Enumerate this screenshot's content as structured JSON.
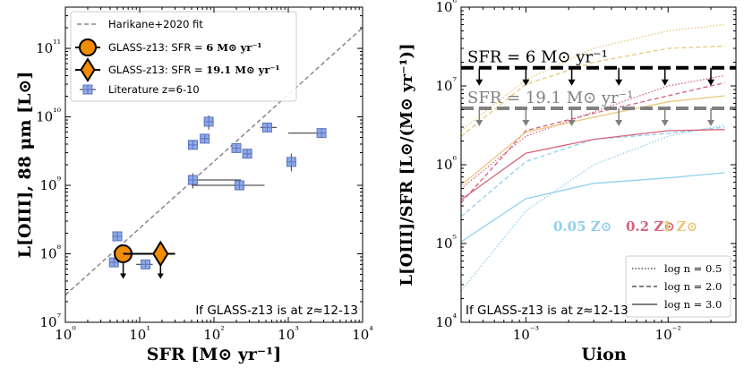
{
  "chart_data": [
    {
      "type": "scatter",
      "panel": "left",
      "xlabel": "SFR [M⊙ yr⁻¹]",
      "ylabel": "L[OIII], 88 μm [L⊙]",
      "xscale": "log",
      "yscale": "log",
      "xlim": [
        1,
        10000
      ],
      "ylim": [
        10000000,
        400000000000
      ],
      "xticks": [
        {
          "v": 1,
          "label": "10⁰"
        },
        {
          "v": 10,
          "label": "10¹"
        },
        {
          "v": 100,
          "label": "10²"
        },
        {
          "v": 1000,
          "label": "10³"
        },
        {
          "v": 10000,
          "label": "10⁴"
        }
      ],
      "yticks": [
        {
          "v": 10000000,
          "label": "10⁷"
        },
        {
          "v": 100000000,
          "label": "10⁸"
        },
        {
          "v": 1000000000,
          "label": "10⁹"
        },
        {
          "v": 10000000000,
          "label": "10¹⁰"
        },
        {
          "v": 100000000000,
          "label": "10¹¹"
        }
      ],
      "annotation": "If GLASS-z13 is at z≈12-13",
      "legend_position": "top-left",
      "legend": [
        {
          "label": "Harikane+2020 fit",
          "marker": "dashed-line",
          "color": "#888888"
        },
        {
          "label_plain": "GLASS-z13: SFR = ",
          "label_bold": "6 M⊙ yr⁻¹",
          "marker": "circle",
          "color": "#f28c00"
        },
        {
          "label_plain": "GLASS-z13: SFR = ",
          "label_bold": "19.1 M⊙ yr⁻¹",
          "marker": "diamond",
          "color": "#f28c00"
        },
        {
          "label": "Literature z=6-10",
          "marker": "square",
          "color": "#8fa9e6"
        }
      ],
      "fit_line": {
        "name": "Harikane+2020 fit",
        "x": [
          1,
          10000
        ],
        "y": [
          25000000,
          200000000000
        ],
        "color": "#888888"
      },
      "glass": [
        {
          "name": "GLASS-z13: SFR = 6 M⊙ yr⁻¹",
          "marker": "circle",
          "x": 6,
          "y": 100000000,
          "upper_limit": true,
          "xerr": [
            4.7,
            19.1
          ],
          "color": "#f28c00"
        },
        {
          "name": "GLASS-z13: SFR = 19.1 M⊙ yr⁻¹",
          "marker": "diamond",
          "x": 19.1,
          "y": 100000000,
          "upper_limit": true,
          "xerr": [
            6,
            30
          ],
          "color": "#f28c00"
        }
      ],
      "literature": {
        "name": "Literature z=6-10",
        "color": "#8fa9e6",
        "points": [
          {
            "x": 4.5,
            "y": 75000000,
            "xerr": [
              3.9,
              5.3
            ]
          },
          {
            "x": 5,
            "y": 180000000
          },
          {
            "x": 12,
            "y": 70000000,
            "xerr": [
              9,
              15
            ]
          },
          {
            "x": 52,
            "y": 1200000000,
            "xerr": [
              50,
              230
            ],
            "yerr": [
              900000000,
              1500000000
            ]
          },
          {
            "x": 52,
            "y": 3900000000
          },
          {
            "x": 75,
            "y": 4800000000
          },
          {
            "x": 85,
            "y": 8500000000,
            "yerr": [
              6500000000,
              10500000000
            ]
          },
          {
            "x": 220,
            "y": 1000000000,
            "xerr": [
              50,
              480
            ]
          },
          {
            "x": 200,
            "y": 3500000000
          },
          {
            "x": 280,
            "y": 2900000000
          },
          {
            "x": 520,
            "y": 7000000000,
            "xerr": [
              420,
              700
            ]
          },
          {
            "x": 1100,
            "y": 2200000000,
            "yerr": [
              1600000000,
              2900000000
            ]
          },
          {
            "x": 2800,
            "y": 5800000000,
            "xerr": [
              1000,
              3100
            ]
          }
        ]
      }
    },
    {
      "type": "line",
      "panel": "right",
      "xlabel": "Uion",
      "ylabel": "L[OIII]/SFR [L⊙/(M⊙ yr⁻¹)]",
      "xscale": "log",
      "yscale": "log",
      "xlim": [
        0.00035,
        0.03
      ],
      "ylim": [
        10000,
        100000000
      ],
      "xticks": [
        {
          "v": 0.001,
          "label": "10⁻³"
        },
        {
          "v": 0.01,
          "label": "10⁻²"
        }
      ],
      "yticks": [
        {
          "v": 10000,
          "label": "10⁴"
        },
        {
          "v": 100000,
          "label": "10⁵"
        },
        {
          "v": 1000000,
          "label": "10⁶"
        },
        {
          "v": 10000000,
          "label": "10⁷"
        },
        {
          "v": 100000000,
          "label": "10⁸"
        }
      ],
      "annotation": "If GLASS-z13 is at z≈12-13",
      "metallicity_labels": [
        {
          "text": "0.05 Z⊙",
          "color": "#8fd0f0"
        },
        {
          "text": "0.2 Z⊙",
          "color": "#d6627a"
        },
        {
          "text": "1 Z⊙",
          "color": "#e8c87a"
        }
      ],
      "legend_position": "bottom-right",
      "legend": [
        {
          "label": "log n = 0.5",
          "dash": "dotted"
        },
        {
          "label": "log n = 2.0",
          "dash": "dashed"
        },
        {
          "label": "log n = 3.0",
          "dash": "solid"
        }
      ],
      "limits": [
        {
          "label": "SFR = 6 M⊙ yr⁻¹",
          "y": 17000000,
          "color": "#000000",
          "arrow_x": [
            0.00047,
            0.001,
            0.0021,
            0.0045,
            0.0095,
            0.02
          ]
        },
        {
          "label": "SFR = 19.1 M⊙ yr⁻¹",
          "y": 5200000,
          "color": "#808080",
          "arrow_x": [
            0.00047,
            0.001,
            0.0021,
            0.0045,
            0.0095,
            0.02
          ]
        }
      ],
      "x": [
        0.00035,
        0.001,
        0.003,
        0.01,
        0.025
      ],
      "series": [
        {
          "name": "0.05 Z⊙, log n = 0.5",
          "metallicity": "0.05",
          "dash": "dotted",
          "color": "#8fd0f0",
          "values": [
            25000,
            260000,
            1000000,
            2300000,
            3200000
          ]
        },
        {
          "name": "0.05 Z⊙, log n = 2.0",
          "metallicity": "0.05",
          "dash": "dashed",
          "color": "#8fd0f0",
          "values": [
            220000,
            1100000,
            2100000,
            2500000,
            3000000
          ]
        },
        {
          "name": "0.05 Z⊙, log n = 3.0",
          "metallicity": "0.05",
          "dash": "solid",
          "color": "#8fd0f0",
          "values": [
            105000,
            370000,
            580000,
            680000,
            790000
          ]
        },
        {
          "name": "0.2 Z⊙, log n = 0.5",
          "metallicity": "0.2",
          "dash": "dotted",
          "color": "#d6627a",
          "values": [
            500000,
            2300000,
            4700000,
            10000000,
            13500000
          ]
        },
        {
          "name": "0.2 Z⊙, log n = 2.0",
          "metallicity": "0.2",
          "dash": "dashed",
          "color": "#d6627a",
          "values": [
            330000,
            2700000,
            4500000,
            7500000,
            11000000
          ]
        },
        {
          "name": "0.2 Z⊙, log n = 3.0",
          "metallicity": "0.2",
          "dash": "solid",
          "color": "#d6627a",
          "values": [
            360000,
            1400000,
            2100000,
            2700000,
            2800000
          ]
        },
        {
          "name": "1 Z⊙, log n = 0.5",
          "metallicity": "1",
          "dash": "dotted",
          "color": "#e8c87a",
          "values": [
            2700000,
            12000000,
            30000000,
            50000000,
            60000000
          ]
        },
        {
          "name": "1 Z⊙, log n = 2.0",
          "metallicity": "1",
          "dash": "dashed",
          "color": "#e8c87a",
          "values": [
            2300000,
            10500000,
            20000000,
            30000000,
            32000000
          ]
        },
        {
          "name": "1 Z⊙, log n = 3.0",
          "metallicity": "1",
          "dash": "solid",
          "color": "#e8c87a",
          "values": [
            550000,
            2600000,
            4000000,
            6300000,
            7500000
          ]
        }
      ]
    }
  ]
}
